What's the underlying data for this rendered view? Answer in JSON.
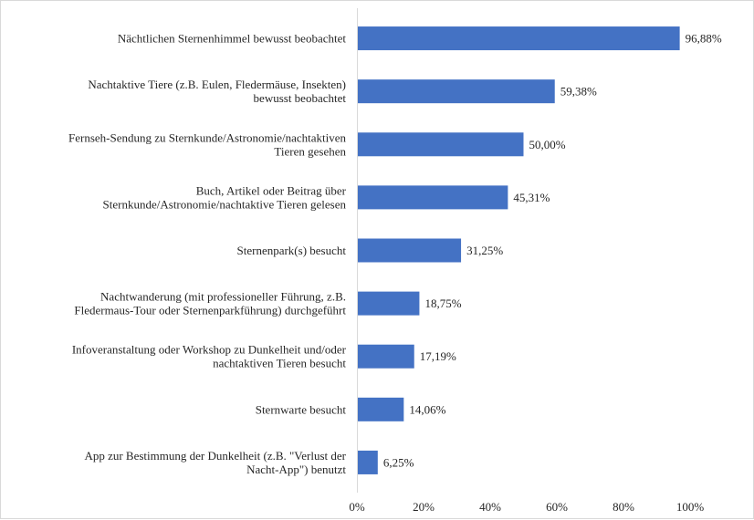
{
  "chart_data": {
    "type": "bar",
    "orientation": "horizontal",
    "title": "",
    "xlabel": "",
    "ylabel": "",
    "xlim": [
      0,
      100
    ],
    "grid": false,
    "bar_color": "#4472c4",
    "categories": [
      [
        "Nächtlichen Sternenhimmel bewusst beobachtet"
      ],
      [
        "Nachtaktive Tiere (z.B. Eulen, Fledermäuse, Insekten)",
        "bewusst beobachtet"
      ],
      [
        "Fernseh-Sendung zu Sternkunde/Astronomie/nachtaktiven",
        "Tieren gesehen"
      ],
      [
        "Buch, Artikel oder Beitrag über",
        "Sternkunde/Astronomie/nachtaktive Tieren gelesen"
      ],
      [
        "Sternenpark(s) besucht"
      ],
      [
        "Nachtwanderung (mit professioneller Führung, z.B.",
        "Fledermaus-Tour oder Sternenparkführung) durchgeführt"
      ],
      [
        "Infoveranstaltung oder Workshop zu Dunkelheit und/oder",
        "nachtaktiven Tieren besucht"
      ],
      [
        "Sternwarte besucht"
      ],
      [
        "App zur Bestimmung der Dunkelheit (z.B. \"Verlust der",
        "Nacht-App\") benutzt"
      ]
    ],
    "values": [
      96.88,
      59.38,
      50.0,
      45.31,
      31.25,
      18.75,
      17.19,
      14.06,
      6.25
    ],
    "value_labels": [
      "96,88%",
      "59,38%",
      "50,00%",
      "45,31%",
      "31,25%",
      "18,75%",
      "17,19%",
      "14,06%",
      "6,25%"
    ],
    "ticks": [
      0,
      20,
      40,
      60,
      80,
      100
    ],
    "tick_labels": [
      "0%",
      "20%",
      "40%",
      "60%",
      "80%",
      "100%"
    ]
  }
}
